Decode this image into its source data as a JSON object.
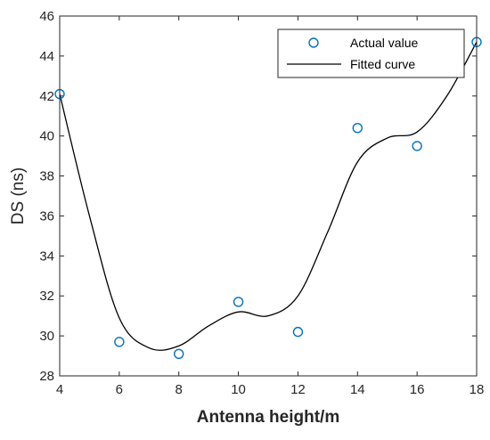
{
  "chart_data": {
    "type": "scatter",
    "xlabel": "Antenna height/m",
    "ylabel": "DS (ns)",
    "xlim": [
      4,
      18
    ],
    "ylim": [
      28,
      46
    ],
    "x_ticks": [
      "4",
      "6",
      "8",
      "10",
      "12",
      "14",
      "16",
      "18"
    ],
    "y_ticks": [
      "28",
      "30",
      "32",
      "34",
      "36",
      "38",
      "40",
      "42",
      "44",
      "46"
    ],
    "legend_position": "top-right",
    "series": [
      {
        "name": "Actual value",
        "marker": "circle",
        "color": "#0072BD",
        "points": [
          {
            "x": 4,
            "y": 42.1
          },
          {
            "x": 6,
            "y": 29.7
          },
          {
            "x": 8,
            "y": 29.1
          },
          {
            "x": 10,
            "y": 31.7
          },
          {
            "x": 12,
            "y": 30.2
          },
          {
            "x": 14,
            "y": 40.4
          },
          {
            "x": 16,
            "y": 39.5
          },
          {
            "x": 18,
            "y": 44.7
          }
        ]
      },
      {
        "name": "Fitted curve",
        "line": "solid",
        "color": "#000000",
        "points": [
          {
            "x": 4,
            "y": 42.1
          },
          {
            "x": 5,
            "y": 36.0
          },
          {
            "x": 6,
            "y": 30.9
          },
          {
            "x": 7,
            "y": 29.4
          },
          {
            "x": 8,
            "y": 29.5
          },
          {
            "x": 9,
            "y": 30.5
          },
          {
            "x": 10,
            "y": 31.2
          },
          {
            "x": 11,
            "y": 31.0
          },
          {
            "x": 12,
            "y": 32.0
          },
          {
            "x": 13,
            "y": 35.2
          },
          {
            "x": 14,
            "y": 38.7
          },
          {
            "x": 15,
            "y": 39.9
          },
          {
            "x": 16,
            "y": 40.2
          },
          {
            "x": 17,
            "y": 42.0
          },
          {
            "x": 18,
            "y": 44.7
          }
        ]
      }
    ]
  }
}
